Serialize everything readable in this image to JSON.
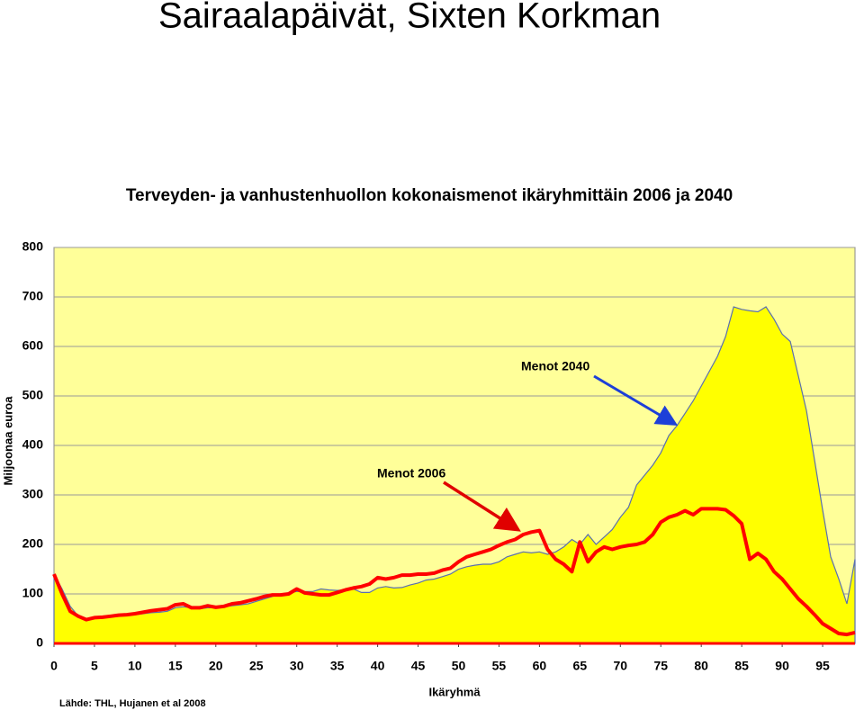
{
  "slide_title": "Sairaalapäivät, Sixten Korkman",
  "source": "Lähde: THL, Hujanen et al 2008",
  "chart_data": {
    "type": "line",
    "title": "Terveyden- ja vanhustenhuollon kokonaismenot ikäryhmittäin 2006 ja 2040",
    "x_label": "Ikäryhmä",
    "y_label": "Miljoonaa euroa",
    "x": [
      0,
      1,
      2,
      3,
      4,
      5,
      6,
      7,
      8,
      9,
      10,
      11,
      12,
      13,
      14,
      15,
      16,
      17,
      18,
      19,
      20,
      21,
      22,
      23,
      24,
      25,
      26,
      27,
      28,
      29,
      30,
      31,
      32,
      33,
      34,
      35,
      36,
      37,
      38,
      39,
      40,
      41,
      42,
      43,
      44,
      45,
      46,
      47,
      48,
      49,
      50,
      51,
      52,
      53,
      54,
      55,
      56,
      57,
      58,
      59,
      60,
      61,
      62,
      63,
      64,
      65,
      66,
      67,
      68,
      69,
      70,
      71,
      72,
      73,
      74,
      75,
      76,
      77,
      78,
      79,
      80,
      81,
      82,
      83,
      84,
      85,
      86,
      87,
      88,
      89,
      90,
      91,
      92,
      93,
      94,
      95,
      96,
      97,
      98,
      99
    ],
    "series": [
      {
        "name": "Menot 2040",
        "color": "#ffff00",
        "outline": "#5a6fb0",
        "fill": true,
        "values": [
          140,
          110,
          75,
          55,
          48,
          50,
          52,
          53,
          55,
          57,
          58,
          60,
          62,
          63,
          65,
          72,
          74,
          72,
          70,
          72,
          72,
          74,
          76,
          78,
          80,
          85,
          90,
          95,
          100,
          102,
          105,
          105,
          105,
          110,
          108,
          107,
          108,
          110,
          103,
          103,
          112,
          115,
          112,
          113,
          118,
          122,
          128,
          130,
          135,
          140,
          150,
          155,
          158,
          160,
          160,
          165,
          175,
          180,
          185,
          183,
          185,
          180,
          185,
          195,
          210,
          200,
          220,
          200,
          215,
          230,
          255,
          275,
          320,
          340,
          360,
          385,
          420,
          440,
          465,
          490,
          520,
          550,
          580,
          620,
          680,
          675,
          672,
          670,
          680,
          655,
          625,
          610,
          540,
          470,
          370,
          270,
          175,
          130,
          80,
          170
        ]
      },
      {
        "name": "Menot 2006",
        "color": "#ff0000",
        "fill": false,
        "values": [
          140,
          100,
          65,
          55,
          48,
          52,
          53,
          55,
          57,
          58,
          60,
          63,
          66,
          68,
          70,
          78,
          80,
          72,
          72,
          76,
          73,
          75,
          80,
          82,
          86,
          90,
          95,
          98,
          98,
          100,
          110,
          102,
          100,
          98,
          98,
          103,
          108,
          112,
          115,
          120,
          133,
          130,
          133,
          138,
          138,
          140,
          140,
          142,
          148,
          152,
          165,
          175,
          180,
          185,
          190,
          198,
          205,
          210,
          220,
          225,
          228,
          190,
          170,
          160,
          145,
          205,
          165,
          185,
          195,
          190,
          195,
          198,
          200,
          205,
          220,
          245,
          255,
          260,
          268,
          260,
          272,
          272,
          272,
          270,
          258,
          242,
          170,
          182,
          170,
          145,
          130,
          110,
          90,
          75,
          58,
          40,
          30,
          20,
          18,
          22
        ]
      }
    ],
    "xlim": [
      0,
      99
    ],
    "xticks": [
      0,
      5,
      10,
      15,
      20,
      25,
      30,
      35,
      40,
      45,
      50,
      55,
      60,
      65,
      70,
      75,
      80,
      85,
      90,
      95
    ],
    "ylim": [
      0,
      800
    ],
    "yticks": [
      0,
      100,
      200,
      300,
      400,
      500,
      600,
      700,
      800
    ],
    "grid": true,
    "background": "#ffff99"
  }
}
